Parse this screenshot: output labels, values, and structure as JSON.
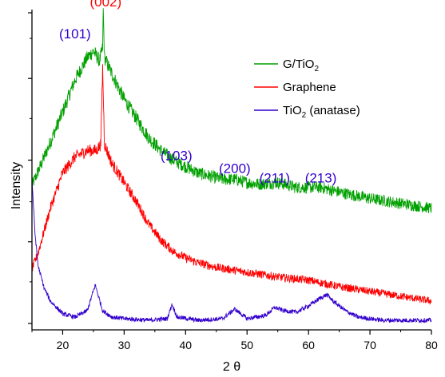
{
  "chart_data": {
    "type": "line",
    "xlabel": "2 θ",
    "ylabel": "Intensity",
    "xlim": [
      15,
      80
    ],
    "ylim": [
      0,
      100
    ],
    "x_ticks": [
      20,
      30,
      40,
      50,
      60,
      70,
      80
    ],
    "y_ticks_labeled": false,
    "grid": false,
    "legend_position": "top-right",
    "series": [
      {
        "name": "G/TiO2",
        "name_main": "G/TiO",
        "name_sub": "2",
        "name_suffix": "",
        "color": "#00a000",
        "points": [
          [
            15,
            45
          ],
          [
            17,
            54
          ],
          [
            20,
            68
          ],
          [
            22,
            78
          ],
          [
            24,
            85
          ],
          [
            25,
            87
          ],
          [
            26,
            84
          ],
          [
            26.5,
            88
          ],
          [
            26.6,
            100
          ],
          [
            26.8,
            85
          ],
          [
            28,
            80
          ],
          [
            30,
            72
          ],
          [
            32,
            66
          ],
          [
            34,
            60
          ],
          [
            36,
            56
          ],
          [
            38,
            53
          ],
          [
            40,
            51
          ],
          [
            42,
            49
          ],
          [
            44,
            48
          ],
          [
            46,
            47
          ],
          [
            48,
            47
          ],
          [
            50,
            46
          ],
          [
            52,
            45.5
          ],
          [
            55,
            46
          ],
          [
            58,
            44.5
          ],
          [
            60,
            44.5
          ],
          [
            62,
            44.5
          ],
          [
            65,
            43
          ],
          [
            70,
            41
          ],
          [
            75,
            39.5
          ],
          [
            80,
            38
          ]
        ]
      },
      {
        "name": "Graphene",
        "name_main": "Graphene",
        "name_sub": "",
        "name_suffix": "",
        "color": "#ff0000",
        "points": [
          [
            15,
            19
          ],
          [
            16,
            24
          ],
          [
            18,
            38
          ],
          [
            20,
            49
          ],
          [
            22,
            54
          ],
          [
            24,
            56
          ],
          [
            25.5,
            56
          ],
          [
            26.2,
            58
          ],
          [
            26.5,
            82
          ],
          [
            26.8,
            58
          ],
          [
            28,
            52
          ],
          [
            30,
            46
          ],
          [
            32,
            40
          ],
          [
            34,
            33
          ],
          [
            36,
            28
          ],
          [
            38,
            24.5
          ],
          [
            40,
            22.5
          ],
          [
            42,
            21
          ],
          [
            45,
            19.5
          ],
          [
            50,
            18
          ],
          [
            55,
            16.5
          ],
          [
            60,
            15.5
          ],
          [
            65,
            13.5
          ],
          [
            70,
            12
          ],
          [
            75,
            10.5
          ],
          [
            80,
            9
          ]
        ]
      },
      {
        "name": "TiO2 (anatase)",
        "name_main": "TiO",
        "name_sub": "2",
        "name_suffix": " (anatase)",
        "color": "#3300cc",
        "points": [
          [
            15,
            47
          ],
          [
            15.5,
            30
          ],
          [
            16,
            20
          ],
          [
            17,
            13
          ],
          [
            18,
            9
          ],
          [
            20,
            5
          ],
          [
            22,
            4
          ],
          [
            24,
            6
          ],
          [
            25.3,
            14
          ],
          [
            26.5,
            6
          ],
          [
            28,
            4
          ],
          [
            30,
            3.5
          ],
          [
            34,
            3
          ],
          [
            37,
            3.5
          ],
          [
            37.8,
            8
          ],
          [
            38.6,
            4
          ],
          [
            42,
            3
          ],
          [
            46,
            3.5
          ],
          [
            48,
            6.5
          ],
          [
            50,
            3.5
          ],
          [
            53,
            4.5
          ],
          [
            54.5,
            7
          ],
          [
            56,
            6
          ],
          [
            58,
            5.5
          ],
          [
            60,
            7.5
          ],
          [
            62,
            10
          ],
          [
            63,
            11
          ],
          [
            64,
            9
          ],
          [
            66,
            6
          ],
          [
            68,
            4
          ],
          [
            72,
            3
          ],
          [
            76,
            3
          ],
          [
            80,
            3
          ]
        ]
      }
    ],
    "annotations": [
      {
        "text": "(002)",
        "color": "#ff0000",
        "at": [
          27,
          101
        ]
      },
      {
        "text": "(101)",
        "color": "#3300cc",
        "at": [
          22,
          91
        ]
      },
      {
        "text": "(103)",
        "color": "#3300cc",
        "at": [
          38.5,
          53
        ]
      },
      {
        "text": "(200)",
        "color": "#3300cc",
        "at": [
          48,
          49
        ]
      },
      {
        "text": "(211)",
        "color": "#3300cc",
        "at": [
          54.5,
          46
        ]
      },
      {
        "text": "(213)",
        "color": "#3300cc",
        "at": [
          62,
          46
        ]
      }
    ]
  }
}
